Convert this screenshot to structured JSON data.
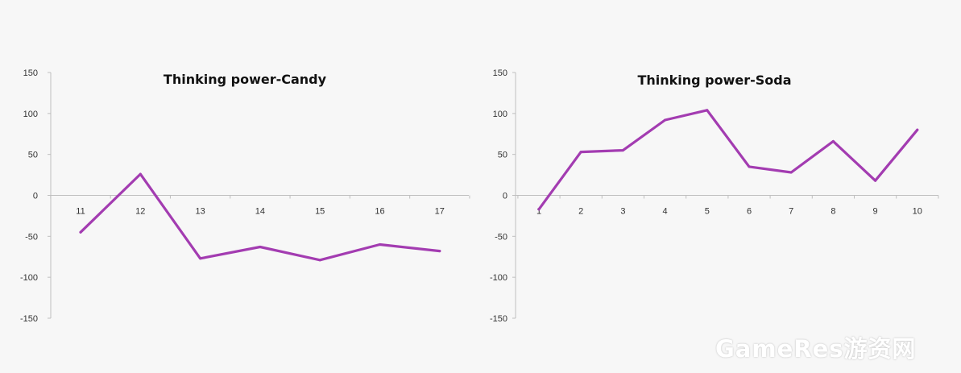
{
  "chart_data": [
    {
      "type": "line",
      "title": "Thinking power-Candy",
      "x": [
        11,
        12,
        13,
        14,
        15,
        16,
        17
      ],
      "series": [
        {
          "values": [
            -45,
            26,
            -77,
            -63,
            -79,
            -60,
            -68
          ]
        }
      ],
      "ylim": [
        -150,
        150
      ],
      "yticks": [
        150,
        100,
        50,
        0,
        -50,
        -100,
        -150
      ],
      "grid": false,
      "line_color": "#a33cb1"
    },
    {
      "type": "line",
      "title": "Thinking power-Soda",
      "x": [
        1,
        2,
        3,
        4,
        5,
        6,
        7,
        8,
        9,
        10
      ],
      "series": [
        {
          "values": [
            -17,
            53,
            55,
            92,
            104,
            35,
            28,
            66,
            18,
            80
          ]
        }
      ],
      "ylim": [
        -150,
        150
      ],
      "yticks": [
        150,
        100,
        50,
        0,
        -50,
        -100,
        -150
      ],
      "grid": false,
      "line_color": "#a33cb1"
    }
  ],
  "watermark": "GameRes游资网"
}
